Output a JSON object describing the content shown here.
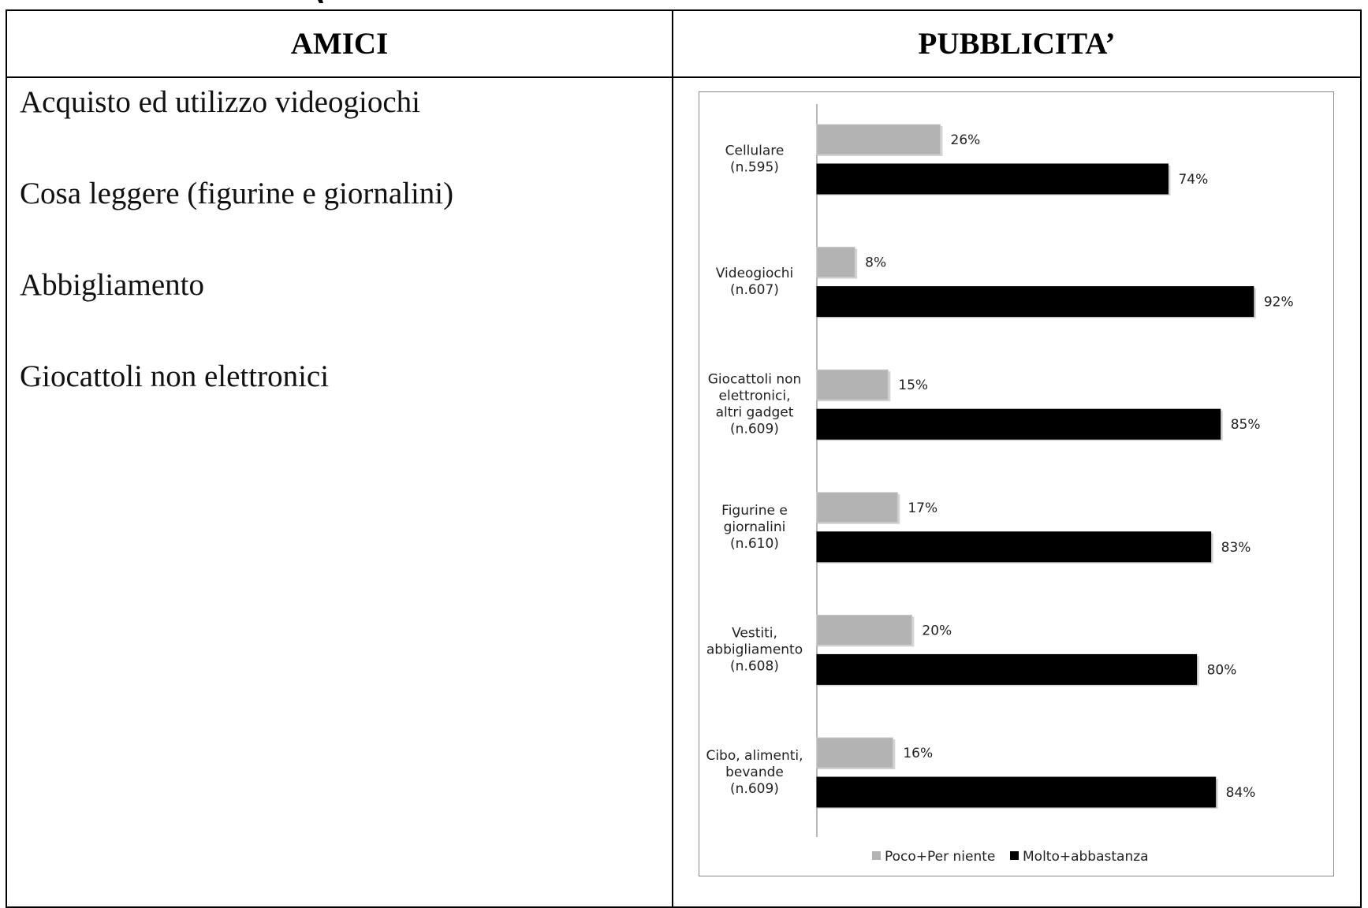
{
  "top_title_fragment": "(                                      ",
  "table": {
    "headers": [
      "AMICI",
      "PUBBLICITA’"
    ],
    "left_items": [
      "Acquisto ed utilizzo videogiochi",
      "Cosa leggere (figurine e giornalini)",
      "Abbigliamento",
      "Giocattoli non elettronici"
    ]
  },
  "chart_data": {
    "type": "bar",
    "orientation": "horizontal",
    "categories": [
      [
        "Cellulare",
        "(n.595)"
      ],
      [
        "Videogiochi",
        "(n.607)"
      ],
      [
        "Giocattoli non",
        "elettronici,",
        "altri gadget",
        "(n.609)"
      ],
      [
        "Figurine e",
        "giornalini",
        "(n.610)"
      ],
      [
        "Vestiti,",
        "abbigliamento",
        "(n.608)"
      ],
      [
        "Cibo, alimenti,",
        "bevande",
        "(n.609)"
      ]
    ],
    "series": [
      {
        "name": "Poco+Per niente",
        "color": "#b3b3b3",
        "values": [
          26,
          8,
          15,
          17,
          20,
          16
        ]
      },
      {
        "name": "Molto+abbastanza",
        "color": "#000000",
        "values": [
          74,
          92,
          85,
          83,
          80,
          84
        ]
      }
    ],
    "value_suffix": "%",
    "xlim": [
      0,
      100
    ],
    "legend_position": "bottom",
    "grid": false
  }
}
